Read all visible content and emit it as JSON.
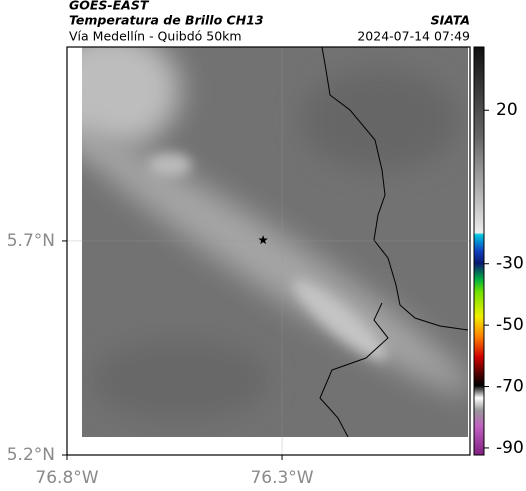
{
  "header": {
    "title": "GOES-EAST",
    "subtitle": "Temperatura de Brillo CH13",
    "route": "Vía Medellín - Quibdó 50km",
    "source": "SIATA",
    "timestamp": "2024-07-14 07:49"
  },
  "map": {
    "xlim": [
      -76.8,
      -75.863
    ],
    "ylim": [
      5.2,
      6.153
    ],
    "xticks": [
      {
        "value": -76.8,
        "label": "76.8°W"
      },
      {
        "value": -76.3,
        "label": "76.3°W"
      }
    ],
    "yticks": [
      {
        "value": 5.2,
        "label": "5.2°N"
      },
      {
        "value": 5.7,
        "label": "5.7°N"
      }
    ],
    "grid": true,
    "marker": {
      "lon": -76.344,
      "lat": 5.702
    }
  },
  "colorbar": {
    "lim": [
      -92.3,
      40.6
    ],
    "ticks": [
      20,
      -30,
      -50,
      -70,
      -90
    ]
  }
}
